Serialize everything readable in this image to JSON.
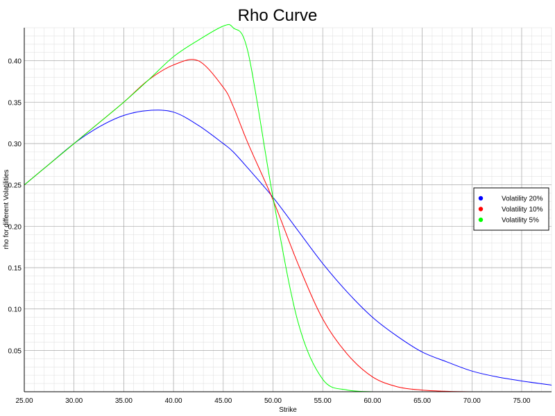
{
  "chart_data": {
    "type": "line",
    "title": "Rho Curve",
    "xlabel": "Strike",
    "ylabel": "rho for different Volatilities",
    "xlim": [
      25,
      78
    ],
    "ylim": [
      0,
      0.44
    ],
    "x_ticks": [
      "25.00",
      "30.00",
      "35.00",
      "40.00",
      "45.00",
      "50.00",
      "55.00",
      "60.00",
      "65.00",
      "70.00",
      "75.00"
    ],
    "y_ticks": [
      "0.05",
      "0.10",
      "0.15",
      "0.20",
      "0.25",
      "0.30",
      "0.35",
      "0.40"
    ],
    "grid": true,
    "legend_position": "right",
    "x": [
      25,
      27.5,
      30,
      32.5,
      35,
      37.5,
      40,
      42.5,
      45,
      46,
      47.5,
      50,
      52.5,
      55,
      57.5,
      60,
      62.5,
      65,
      67.5,
      70,
      72.5,
      75,
      78
    ],
    "series": [
      {
        "name": "Volatility 20%",
        "color": "#0000ff",
        "values": [
          0.25,
          0.275,
          0.3,
          0.32,
          0.334,
          0.34,
          0.338,
          0.322,
          0.3,
          0.29,
          0.27,
          0.235,
          0.195,
          0.155,
          0.12,
          0.09,
          0.067,
          0.048,
          0.036,
          0.025,
          0.018,
          0.013,
          0.008
        ]
      },
      {
        "name": "Volatility 10%",
        "color": "#ff0000",
        "values": [
          0.25,
          0.275,
          0.3,
          0.325,
          0.35,
          0.377,
          0.395,
          0.4,
          0.368,
          0.345,
          0.3,
          0.232,
          0.155,
          0.088,
          0.045,
          0.018,
          0.006,
          0.002,
          0.0005,
          0,
          0,
          0,
          0
        ]
      },
      {
        "name": "Volatility 5%",
        "color": "#00ff00",
        "values": [
          0.25,
          0.275,
          0.3,
          0.325,
          0.35,
          0.377,
          0.405,
          0.425,
          0.442,
          0.44,
          0.41,
          0.235,
          0.085,
          0.015,
          0.002,
          0,
          0,
          0,
          0,
          0,
          0,
          0,
          0
        ]
      }
    ]
  }
}
